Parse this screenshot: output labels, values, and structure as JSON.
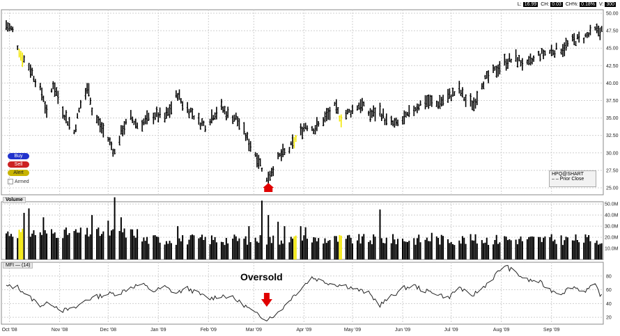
{
  "status_bar": {
    "l_label": "L:",
    "l_value": "16.99",
    "ch_label": "CH:",
    "ch_value": "0.03",
    "chpct_label": "CH%:",
    "chpct_value": "0.18%",
    "v_label": "V:",
    "v_value": "300"
  },
  "controls": {
    "buy": "Buy",
    "sell": "Sell",
    "alert": "Alert",
    "armed": "Armed"
  },
  "legend": {
    "symbol": "HPQ@SHART",
    "prior_close": "Prior Close"
  },
  "volume_title": "Volume",
  "mfi_title": "MFI",
  "mfi_param": "(14)",
  "annotation": "Oversold",
  "colors": {
    "bar": "#000000",
    "highlight": "#f2e600",
    "arrow": "#e00000",
    "grid": "#cfcfcf"
  },
  "chart_data": [
    {
      "type": "bar",
      "subtype": "ohlc",
      "title": "",
      "xlabel": "",
      "ylabel": "",
      "x_ticks": [
        "Oct '08",
        "Nov '08",
        "Dec '08",
        "Jan '09",
        "Feb '09",
        "Mar '09",
        "Apr '09",
        "May '09",
        "Jun '09",
        "Jul '09",
        "Aug '09",
        "Sep '09"
      ],
      "ylim": [
        24.0,
        50.5
      ],
      "y_ticks": [
        "25.00",
        "27.50",
        "30.00",
        "32.50",
        "35.00",
        "37.50",
        "40.00",
        "42.50",
        "45.00",
        "47.50",
        "50.00"
      ],
      "path": [
        [
          "2008-09-29",
          48.3
        ],
        [
          "2008-10-03",
          47.5
        ],
        [
          "2008-10-08",
          44.0
        ],
        [
          "2008-10-13",
          42.5
        ],
        [
          "2008-10-17",
          40.5
        ],
        [
          "2008-10-22",
          38.0
        ],
        [
          "2008-10-24",
          35.5
        ],
        [
          "2008-10-28",
          40.0
        ],
        [
          "2008-10-31",
          38.0
        ],
        [
          "2008-11-05",
          35.0
        ],
        [
          "2008-11-10",
          33.0
        ],
        [
          "2008-11-14",
          37.0
        ],
        [
          "2008-11-19",
          39.5
        ],
        [
          "2008-11-21",
          36.0
        ],
        [
          "2008-11-26",
          34.0
        ],
        [
          "2008-12-01",
          32.0
        ],
        [
          "2008-12-05",
          30.0
        ],
        [
          "2008-12-10",
          33.5
        ],
        [
          "2008-12-15",
          35.0
        ],
        [
          "2008-12-19",
          34.0
        ],
        [
          "2008-12-24",
          34.5
        ],
        [
          "2008-12-30",
          35.5
        ],
        [
          "2009-01-05",
          35.0
        ],
        [
          "2009-01-09",
          36.5
        ],
        [
          "2009-01-13",
          38.5
        ],
        [
          "2009-01-16",
          37.0
        ],
        [
          "2009-01-21",
          36.0
        ],
        [
          "2009-01-26",
          34.5
        ],
        [
          "2009-01-30",
          34.0
        ],
        [
          "2009-02-04",
          35.5
        ],
        [
          "2009-02-09",
          36.5
        ],
        [
          "2009-02-13",
          35.5
        ],
        [
          "2009-02-18",
          35.0
        ],
        [
          "2009-02-23",
          33.0
        ],
        [
          "2009-02-26",
          31.5
        ],
        [
          "2009-03-03",
          29.5
        ],
        [
          "2009-03-06",
          28.0
        ],
        [
          "2009-03-09",
          26.0
        ],
        [
          "2009-03-12",
          27.5
        ],
        [
          "2009-03-17",
          29.5
        ],
        [
          "2009-03-23",
          30.5
        ],
        [
          "2009-03-27",
          32.0
        ],
        [
          "2009-04-02",
          34.0
        ],
        [
          "2009-04-08",
          33.5
        ],
        [
          "2009-04-14",
          35.0
        ],
        [
          "2009-04-20",
          36.5
        ],
        [
          "2009-04-24",
          35.0
        ],
        [
          "2009-04-30",
          36.0
        ],
        [
          "2009-05-06",
          37.0
        ],
        [
          "2009-05-12",
          35.5
        ],
        [
          "2009-05-18",
          36.0
        ],
        [
          "2009-05-22",
          34.5
        ],
        [
          "2009-05-28",
          34.0
        ],
        [
          "2009-06-03",
          35.0
        ],
        [
          "2009-06-09",
          36.5
        ],
        [
          "2009-06-15",
          37.5
        ],
        [
          "2009-06-22",
          37.0
        ],
        [
          "2009-06-29",
          38.0
        ],
        [
          "2009-07-06",
          39.0
        ],
        [
          "2009-07-10",
          37.5
        ],
        [
          "2009-07-15",
          37.0
        ],
        [
          "2009-07-20",
          40.0
        ],
        [
          "2009-07-27",
          41.5
        ],
        [
          "2009-08-03",
          43.0
        ],
        [
          "2009-08-10",
          43.5
        ],
        [
          "2009-08-17",
          42.5
        ],
        [
          "2009-08-24",
          44.0
        ],
        [
          "2009-08-31",
          44.5
        ],
        [
          "2009-09-08",
          45.0
        ],
        [
          "2009-09-14",
          46.0
        ],
        [
          "2009-09-21",
          46.5
        ],
        [
          "2009-09-28",
          47.5
        ]
      ],
      "highlights": [
        "2008-10-08",
        "2009-03-27",
        "2009-04-24"
      ]
    },
    {
      "type": "bar",
      "title": "Volume",
      "ylim": [
        0,
        52
      ],
      "y_ticks": [
        "10.0M",
        "20.0M",
        "30.0M",
        "40.0M",
        "50.0M"
      ],
      "baseline": 17,
      "spikes": [
        [
          "2008-10-10",
          42
        ],
        [
          "2008-10-13",
          46
        ],
        [
          "2008-10-22",
          38
        ],
        [
          "2008-11-21",
          40
        ],
        [
          "2008-12-01",
          35
        ],
        [
          "2008-12-05",
          56
        ],
        [
          "2008-12-09",
          38
        ],
        [
          "2009-01-13",
          30
        ],
        [
          "2009-02-26",
          30
        ],
        [
          "2009-03-06",
          53
        ],
        [
          "2009-03-10",
          40
        ],
        [
          "2009-03-16",
          34
        ],
        [
          "2009-03-20",
          30
        ],
        [
          "2009-03-30",
          30
        ],
        [
          "2009-04-02",
          29
        ],
        [
          "2009-05-18",
          45
        ],
        [
          "2009-06-19",
          24
        ],
        [
          "2009-08-03",
          21
        ]
      ]
    },
    {
      "type": "line",
      "title": "MFI",
      "ylim": [
        10,
        100
      ],
      "y_ticks": [
        "20",
        "40",
        "60",
        "80"
      ],
      "path": [
        [
          "2008-09-29",
          65
        ],
        [
          "2008-10-06",
          64
        ],
        [
          "2008-10-13",
          50
        ],
        [
          "2008-10-20",
          38
        ],
        [
          "2008-10-27",
          40
        ],
        [
          "2008-11-03",
          30
        ],
        [
          "2008-11-10",
          32
        ],
        [
          "2008-11-17",
          45
        ],
        [
          "2008-11-24",
          50
        ],
        [
          "2008-12-01",
          54
        ],
        [
          "2008-12-08",
          55
        ],
        [
          "2008-12-15",
          64
        ],
        [
          "2008-12-22",
          68
        ],
        [
          "2008-12-29",
          58
        ],
        [
          "2009-01-05",
          64
        ],
        [
          "2009-01-12",
          55
        ],
        [
          "2009-01-19",
          62
        ],
        [
          "2009-01-26",
          54
        ],
        [
          "2009-02-02",
          47
        ],
        [
          "2009-02-09",
          52
        ],
        [
          "2009-02-16",
          48
        ],
        [
          "2009-02-23",
          38
        ],
        [
          "2009-03-02",
          25
        ],
        [
          "2009-03-09",
          18
        ],
        [
          "2009-03-16",
          26
        ],
        [
          "2009-03-23",
          45
        ],
        [
          "2009-03-30",
          62
        ],
        [
          "2009-04-06",
          78
        ],
        [
          "2009-04-13",
          72
        ],
        [
          "2009-04-20",
          68
        ],
        [
          "2009-04-27",
          66
        ],
        [
          "2009-05-04",
          60
        ],
        [
          "2009-05-11",
          55
        ],
        [
          "2009-05-18",
          38
        ],
        [
          "2009-05-25",
          50
        ],
        [
          "2009-06-01",
          62
        ],
        [
          "2009-06-08",
          66
        ],
        [
          "2009-06-15",
          58
        ],
        [
          "2009-06-22",
          55
        ],
        [
          "2009-06-29",
          48
        ],
        [
          "2009-07-06",
          64
        ],
        [
          "2009-07-13",
          50
        ],
        [
          "2009-07-20",
          62
        ],
        [
          "2009-07-27",
          78
        ],
        [
          "2009-08-03",
          96
        ],
        [
          "2009-08-10",
          84
        ],
        [
          "2009-08-17",
          74
        ],
        [
          "2009-08-24",
          72
        ],
        [
          "2009-08-31",
          60
        ],
        [
          "2009-09-07",
          55
        ],
        [
          "2009-09-14",
          65
        ],
        [
          "2009-09-21",
          58
        ],
        [
          "2009-09-28",
          66
        ],
        [
          "2009-10-02",
          50
        ]
      ]
    }
  ]
}
